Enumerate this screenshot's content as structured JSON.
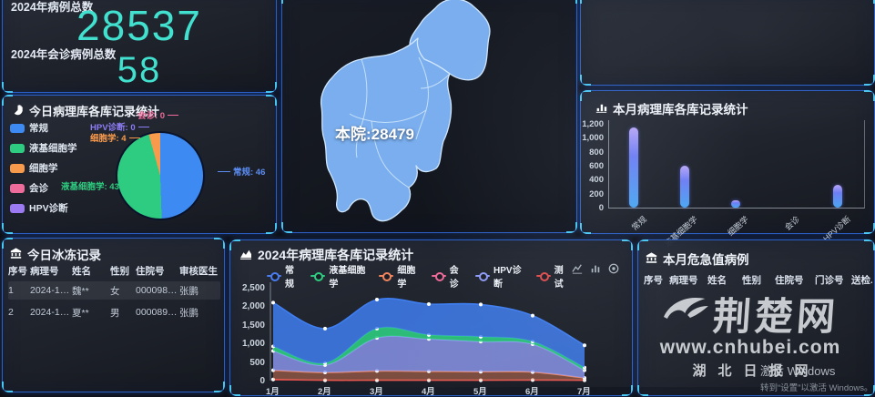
{
  "stats": {
    "total_label": "2024年病例总数",
    "total_value": "28537",
    "consult_label": "2024年会诊病例总数",
    "consult_value": "58",
    "value_color": "#41e0cf"
  },
  "map": {
    "hospital_label": "本院:28479"
  },
  "frozen_table": {
    "title": "今日冰冻记录",
    "columns": [
      "序号",
      "病理号",
      "姓名",
      "性别",
      "住院号",
      "审核医生"
    ],
    "rows": [
      [
        "1",
        "2024-13...",
        "魏**",
        "女",
        "0000986...",
        "张鹏"
      ],
      [
        "2",
        "2024-13...",
        "夏**",
        "男",
        "0000898...",
        "张鹏"
      ]
    ]
  },
  "critical_table": {
    "title": "本月危急值病例",
    "columns": [
      "序号",
      "病理号",
      "姓名",
      "性别",
      "住院号",
      "门诊号",
      "送检..."
    ],
    "rows": []
  },
  "watermark": {
    "logo_text": "荆楚网",
    "url": "www.cnhubei.com",
    "site_name": "湖北日报网",
    "activation_title": "激活 Windows",
    "activation_subtitle": "转到“设置”以激活 Windows。"
  },
  "chart_data": [
    {
      "type": "pie",
      "title": "今日病理库各库记录统计",
      "legend_position": "left",
      "slices": [
        {
          "label": "常规",
          "value": 46,
          "color": "#3d8bf2"
        },
        {
          "label": "液基细胞学",
          "value": 43,
          "color": "#2ecc80"
        },
        {
          "label": "细胞学",
          "value": 4,
          "color": "#f89a4c"
        },
        {
          "label": "会诊",
          "value": 0,
          "color": "#ef6b9a"
        },
        {
          "label": "HPV诊断",
          "value": 0,
          "color": "#9b7af2"
        }
      ],
      "callouts": [
        {
          "text": "会诊: 0",
          "color": "#ef6b9a"
        },
        {
          "text": "HPV诊断: 0",
          "color": "#8f7df5"
        },
        {
          "text": "细胞学: 4",
          "color": "#f89a4c"
        },
        {
          "text": "常规: 46",
          "color": "#5b8df5"
        },
        {
          "text": "液基细胞学: 43",
          "color": "#2ecc80"
        }
      ]
    },
    {
      "type": "bar",
      "title": "本月病理库各库记录统计",
      "categories": [
        "常规",
        "液基细胞学",
        "细胞学",
        "会诊",
        "HPV诊断"
      ],
      "values": [
        1150,
        600,
        100,
        0,
        330
      ],
      "ylim": [
        0,
        1200
      ],
      "yticks": [
        "1,200",
        "1,000",
        "800",
        "600",
        "400",
        "200",
        "0"
      ],
      "bar_color_top": "#b9a6f8",
      "bar_color_bottom": "#4aa6f2"
    },
    {
      "type": "area",
      "title": "2024年病理库各库记录统计",
      "stacked": true,
      "x": [
        "1月",
        "2月",
        "3月",
        "4月",
        "5月",
        "6月",
        "7月"
      ],
      "ylim": [
        0,
        2500
      ],
      "yticks": [
        "2,500",
        "2,000",
        "1,500",
        "1,000",
        "500",
        "0"
      ],
      "legend": [
        {
          "label": "常规",
          "color": "#4a7df0"
        },
        {
          "label": "液基细胞学",
          "color": "#2ecc80"
        },
        {
          "label": "细胞学",
          "color": "#f2865e"
        },
        {
          "label": "会诊",
          "color": "#ef6b9a"
        },
        {
          "label": "HPV诊断",
          "color": "#8f9bf5"
        },
        {
          "label": "测试",
          "color": "#e14b4b"
        }
      ],
      "series": [
        {
          "name": "测试",
          "color": "#e14b4b",
          "alpha": 0.5,
          "values": [
            30,
            10,
            10,
            10,
            10,
            15,
            10
          ]
        },
        {
          "name": "会诊",
          "color": "#ef6b9a",
          "alpha": 0.35,
          "values": [
            0,
            0,
            0,
            0,
            0,
            0,
            0
          ]
        },
        {
          "name": "细胞学",
          "color": "#f2865e",
          "alpha": 0.45,
          "values": [
            250,
            210,
            250,
            240,
            230,
            215,
            60
          ]
        },
        {
          "name": "HPV诊断",
          "color": "#8f9bf5",
          "alpha": 0.8,
          "values": [
            520,
            200,
            890,
            870,
            810,
            750,
            210
          ]
        },
        {
          "name": "液基细胞学",
          "color": "#2ecc80",
          "alpha": 0.9,
          "values": [
            120,
            50,
            250,
            110,
            130,
            70,
            70
          ]
        },
        {
          "name": "常规",
          "color": "#3f7ef0",
          "alpha": 0.85,
          "values": [
            1180,
            930,
            780,
            830,
            870,
            700,
            600
          ]
        }
      ],
      "toolbox": [
        "line-chart",
        "bar-chart",
        "download"
      ]
    }
  ]
}
